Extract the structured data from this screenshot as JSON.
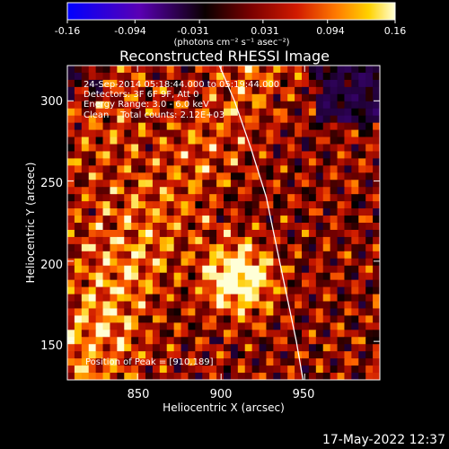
{
  "colorbar": {
    "tick_labels": [
      "-0.16",
      "-0.094",
      "-0.031",
      "0.031",
      "0.094",
      "0.16"
    ],
    "tick_values": [
      -0.16,
      -0.094,
      -0.031,
      0.031,
      0.094,
      0.16
    ],
    "range": [
      -0.16,
      0.16
    ],
    "unit_label": "(photons cm⁻² s⁻¹ asec⁻²)",
    "colors": [
      "#0000ff",
      "#5a00b4",
      "#000000",
      "#7a0000",
      "#d11a00",
      "#ff7a00",
      "#ffd200",
      "#ffffd8"
    ]
  },
  "chart_data": {
    "type": "heatmap",
    "title": "Reconstructed RHESSI Image",
    "xlabel": "Heliocentric X (arcsec)",
    "ylabel": "Heliocentric Y (arcsec)",
    "xlim": [
      808,
      995
    ],
    "ylim": [
      126,
      322
    ],
    "xticks": [
      850,
      900,
      950
    ],
    "xtick_labels": [
      "850",
      "900",
      "950"
    ],
    "yticks": [
      150,
      200,
      250,
      300
    ],
    "ytick_labels": [
      "150",
      "200",
      "250",
      "300"
    ],
    "info_lines": [
      "24-Sep-2014 05:18:44.000 to 05:19:44.000",
      "Detectors: 3F 6F 9F, Att 0",
      "Energy Range: 3.0 - 6.0 keV",
      "Clean    Total counts: 2.12E+03"
    ],
    "peak_label": "Position of Peak = [910,189]",
    "peak": [
      910,
      189
    ],
    "limb_curve": [
      [
        899,
        322
      ],
      [
        908,
        300
      ],
      [
        918,
        270
      ],
      [
        927,
        240
      ],
      [
        933,
        210
      ],
      [
        939,
        180
      ],
      [
        945,
        150
      ],
      [
        949,
        126
      ]
    ]
  },
  "footer": {
    "timestamp": "17-May-2022 12:37"
  }
}
